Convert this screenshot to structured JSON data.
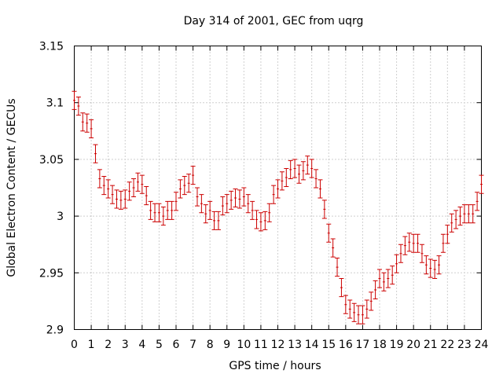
{
  "chart_data": {
    "type": "scatter",
    "title": "Day 314 of 2001, GEC from uqrg",
    "xlabel": "GPS time / hours",
    "ylabel": "Global Electron Content / GECUs",
    "xlim": [
      0,
      24
    ],
    "ylim": [
      2.9,
      3.15
    ],
    "x_ticks": [
      0,
      1,
      2,
      3,
      4,
      5,
      6,
      7,
      8,
      9,
      10,
      11,
      12,
      13,
      14,
      15,
      16,
      17,
      18,
      19,
      20,
      21,
      22,
      23,
      24
    ],
    "x_tick_labels": [
      "0",
      "1",
      "2",
      "3",
      "4",
      "5",
      "6",
      "7",
      "8",
      "9",
      "10",
      "11",
      "12",
      "13",
      "14",
      "15",
      "16",
      "17",
      "18",
      "19",
      "20",
      "21",
      "22",
      "23",
      "24"
    ],
    "y_ticks": [
      2.9,
      2.95,
      3.0,
      3.05,
      3.1,
      3.15
    ],
    "y_tick_labels": [
      "2.9",
      "2.95",
      "3",
      "3.05",
      "3.1",
      "3.15"
    ],
    "grid": true,
    "colors": {
      "series": "#cc0000",
      "grid": "#a0a0a0",
      "axis": "#000000"
    },
    "series": [
      {
        "error": 0.008,
        "x": [
          0.0,
          0.25,
          0.5,
          0.75,
          1.0,
          1.25,
          1.5,
          1.75,
          2.0,
          2.25,
          2.5,
          2.75,
          3.0,
          3.25,
          3.5,
          3.75,
          4.0,
          4.25,
          4.5,
          4.75,
          5.0,
          5.25,
          5.5,
          5.75,
          6.0,
          6.25,
          6.5,
          6.75,
          7.0,
          7.25,
          7.5,
          7.75,
          8.0,
          8.25,
          8.5,
          8.75,
          9.0,
          9.25,
          9.5,
          9.75,
          10.0,
          10.25,
          10.5,
          10.75,
          11.0,
          11.25,
          11.5,
          11.75,
          12.0,
          12.25,
          12.5,
          12.75,
          13.0,
          13.25,
          13.5,
          13.75,
          14.0,
          14.25,
          14.5,
          14.75,
          15.0,
          15.25,
          15.5,
          15.75,
          16.0,
          16.25,
          16.5,
          16.75,
          17.0,
          17.25,
          17.5,
          17.75,
          18.0,
          18.25,
          18.5,
          18.75,
          19.0,
          19.25,
          19.5,
          19.75,
          20.0,
          20.25,
          20.5,
          20.75,
          21.0,
          21.25,
          21.5,
          21.75,
          22.0,
          22.25,
          22.5,
          22.75,
          23.0,
          23.25,
          23.5,
          23.75,
          24.0
        ],
        "y": [
          3.102,
          3.097,
          3.083,
          3.082,
          3.077,
          3.055,
          3.033,
          3.027,
          3.024,
          3.019,
          3.015,
          3.014,
          3.015,
          3.022,
          3.025,
          3.03,
          3.028,
          3.018,
          3.005,
          3.003,
          3.003,
          3.0,
          3.005,
          3.005,
          3.013,
          3.024,
          3.027,
          3.029,
          3.036,
          3.017,
          3.011,
          3.002,
          3.005,
          2.996,
          2.996,
          3.009,
          3.011,
          3.014,
          3.016,
          3.015,
          3.017,
          3.011,
          3.005,
          2.997,
          2.995,
          2.996,
          3.003,
          3.019,
          3.024,
          3.031,
          3.034,
          3.041,
          3.042,
          3.037,
          3.04,
          3.045,
          3.042,
          3.033,
          3.024,
          3.006,
          2.985,
          2.972,
          2.955,
          2.937,
          2.922,
          2.918,
          2.915,
          2.913,
          2.913,
          2.918,
          2.925,
          2.935,
          2.945,
          2.942,
          2.945,
          2.948,
          2.958,
          2.967,
          2.974,
          2.977,
          2.976,
          2.976,
          2.967,
          2.957,
          2.954,
          2.953,
          2.957,
          2.976,
          2.984,
          2.994,
          2.997,
          3.0,
          3.002,
          3.002,
          3.002,
          3.013,
          3.028
        ]
      }
    ]
  }
}
